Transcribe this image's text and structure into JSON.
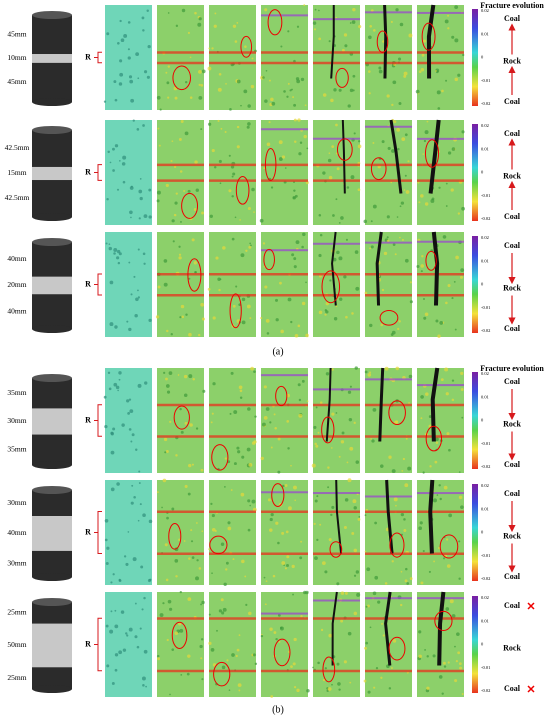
{
  "colorbar": {
    "ticks": [
      "0.02",
      "0.01",
      "0",
      "-0.01",
      "-0.02"
    ]
  },
  "r_label": "R",
  "header": "Fracture evolution",
  "panels": [
    {
      "label": "(a)",
      "rows": [
        {
          "dims": [
            "45mm",
            "10mm",
            "45mm"
          ],
          "layers": [
            "Coal",
            "Rock",
            "Coal"
          ]
        },
        {
          "dims": [
            "42.5mm",
            "15mm",
            "42.5mm"
          ],
          "layers": [
            "Coal",
            "Rock",
            "Coal"
          ]
        },
        {
          "dims": [
            "40mm",
            "20mm",
            "40mm"
          ],
          "layers": [
            "Coal",
            "Rock",
            "Coal"
          ]
        }
      ]
    },
    {
      "label": "(b)",
      "rows": [
        {
          "dims": [
            "35mm",
            "30mm",
            "35mm"
          ],
          "layers": [
            "Coal",
            "Rock",
            "Coal"
          ]
        },
        {
          "dims": [
            "30mm",
            "40mm",
            "30mm"
          ],
          "layers": [
            "Coal",
            "Rock",
            "Coal"
          ]
        },
        {
          "dims": [
            "25mm",
            "50mm",
            "25mm"
          ],
          "layers": [
            "Coal",
            "Rock",
            "Coal"
          ]
        }
      ]
    }
  ]
}
